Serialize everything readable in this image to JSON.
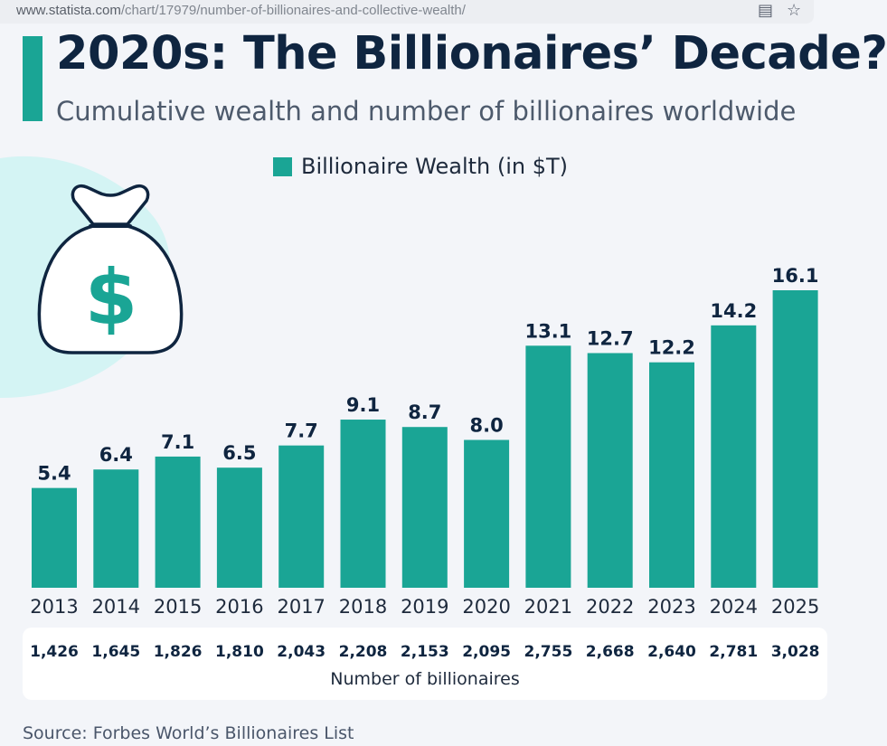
{
  "browser": {
    "url_host": "www.statista.com",
    "url_path": "/chart/17979/number-of-billionaires-and-collective-wealth/",
    "reader_icon": "reader-mode-icon",
    "bookmark_icon": "star-icon"
  },
  "header": {
    "title": "2020s: The Billionaires’ Decade?",
    "subtitle": "Cumulative wealth and number of billionaires worldwide"
  },
  "colors": {
    "accent": "#1aa595",
    "bar": "#1aa595",
    "title": "#0f2540",
    "blob": "#c9f3f1"
  },
  "illustration": {
    "icon": "money-bag-icon"
  },
  "chart_data": {
    "type": "bar",
    "title": "2020s: The Billionaires’ Decade?",
    "subtitle": "Cumulative wealth and number of billionaires worldwide",
    "categories": [
      "2013",
      "2014",
      "2015",
      "2016",
      "2017",
      "2018",
      "2019",
      "2020",
      "2021",
      "2022",
      "2023",
      "2024",
      "2025"
    ],
    "series": [
      {
        "name": "Billionaire Wealth (in $T)",
        "values": [
          5.4,
          6.4,
          7.1,
          6.5,
          7.7,
          9.1,
          8.7,
          8.0,
          13.1,
          12.7,
          12.2,
          14.2,
          16.1
        ]
      }
    ],
    "value_labels": [
      "5.4",
      "6.4",
      "7.1",
      "6.5",
      "7.7",
      "9.1",
      "8.7",
      "8.0",
      "13.1",
      "12.7",
      "12.2",
      "14.2",
      "16.1"
    ],
    "billionaire_counts": [
      "1,426",
      "1,645",
      "1,826",
      "1,810",
      "2,043",
      "2,208",
      "2,153",
      "2,095",
      "2,755",
      "2,668",
      "2,640",
      "2,781",
      "3,028"
    ],
    "counts_label": "Number of billionaires",
    "ylim": [
      0,
      16.1
    ],
    "grid": false,
    "legend_position": "top-center"
  },
  "source": "Source: Forbes World’s Billionaires List"
}
